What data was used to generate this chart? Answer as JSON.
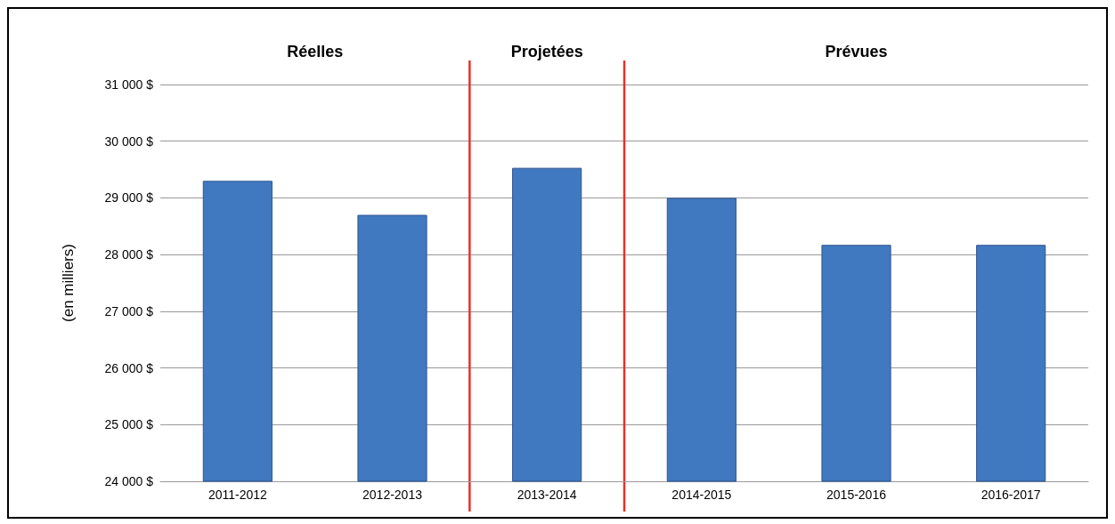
{
  "chart_data": {
    "type": "bar",
    "ylabel": "(en milliers)",
    "categories": [
      "2011-2012",
      "2012-2013",
      "2013-2014",
      "2014-2015",
      "2015-2016",
      "2016-2017"
    ],
    "values": [
      29300,
      28700,
      29530,
      29000,
      28170,
      28170
    ],
    "color": "#4079c0",
    "ylim": [
      24000,
      31000
    ],
    "yticks": [
      {
        "value": 24000,
        "label": "24 000 $"
      },
      {
        "value": 25000,
        "label": "25 000 $"
      },
      {
        "value": 26000,
        "label": "26 000 $"
      },
      {
        "value": 27000,
        "label": "27 000 $"
      },
      {
        "value": 28000,
        "label": "28 000 $"
      },
      {
        "value": 29000,
        "label": "29 000 $"
      },
      {
        "value": 30000,
        "label": "30 000 $"
      },
      {
        "value": 31000,
        "label": "31 000 $"
      }
    ],
    "grid": "y",
    "annotations": [
      "Réelles",
      "Projetées",
      "Prévues"
    ]
  }
}
